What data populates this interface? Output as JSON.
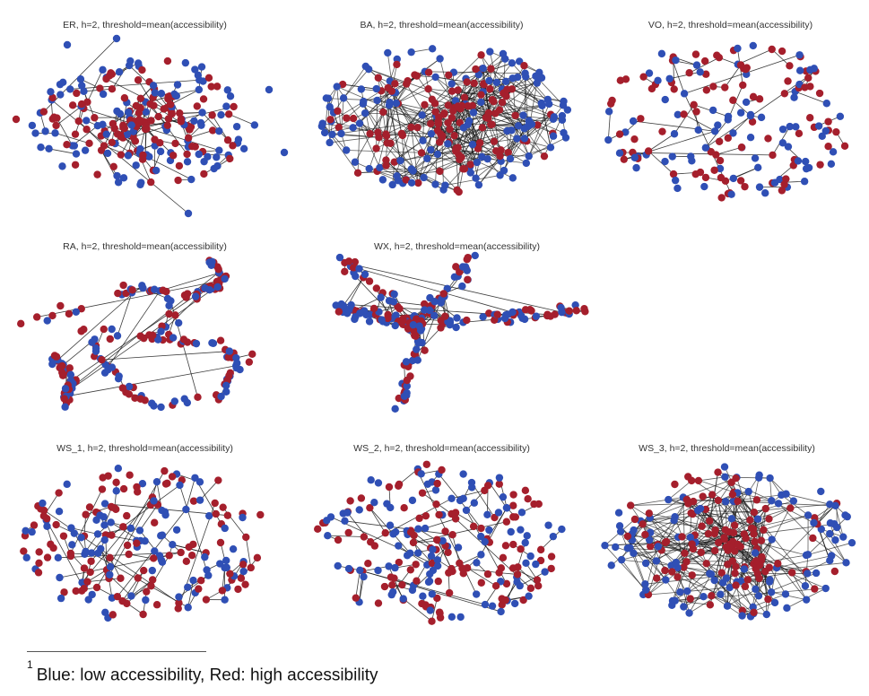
{
  "colors": {
    "low": "#2f4fb5",
    "high": "#a51f2c",
    "edge": "#1b1b1b"
  },
  "panels": [
    {
      "id": "er",
      "title": "ER, h=2, threshold=mean(accessibility)",
      "layout": "blob",
      "nodes": 230,
      "high_fraction": 0.5
    },
    {
      "id": "ba",
      "title": "BA, h=2, threshold=mean(accessibility)",
      "layout": "dense",
      "nodes": 260,
      "high_fraction": 0.5
    },
    {
      "id": "vo",
      "title": "VO, h=2, threshold=mean(accessibility)",
      "layout": "mesh",
      "nodes": 170,
      "high_fraction": 0.5
    },
    {
      "id": "ra",
      "title": "RA, h=2, threshold=mean(accessibility)",
      "layout": "chain",
      "nodes": 200,
      "high_fraction": 0.5
    },
    {
      "id": "wx",
      "title": "WX, h=2, threshold=mean(accessibility)",
      "layout": "cross",
      "nodes": 210,
      "high_fraction": 0.5
    },
    {
      "id": "ws1",
      "title": "WS_1, h=2, threshold=mean(accessibility)",
      "layout": "mesh",
      "nodes": 200,
      "high_fraction": 0.55
    },
    {
      "id": "ws2",
      "title": "WS_2, h=2, threshold=mean(accessibility)",
      "layout": "mesh",
      "nodes": 220,
      "high_fraction": 0.55
    },
    {
      "id": "ws3",
      "title": "WS_3, h=2, threshold=mean(accessibility)",
      "layout": "dense",
      "nodes": 230,
      "high_fraction": 0.55
    }
  ],
  "footnote": {
    "marker": "1",
    "text": "Blue: low accessibility, Red: high accessibility"
  }
}
